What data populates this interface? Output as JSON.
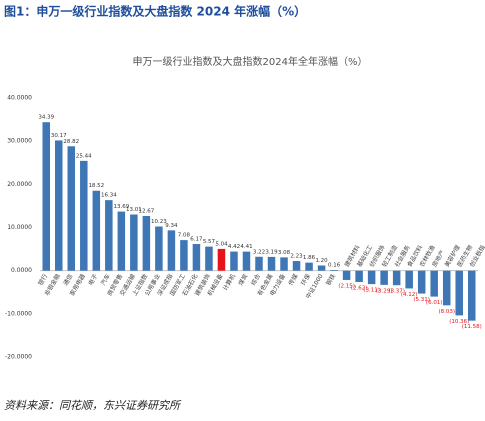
{
  "header": {
    "title": "图1：申万一级行业指数及大盘指数 2024 年涨幅（%）"
  },
  "chart_data": {
    "type": "bar",
    "title": "申万一级行业指数及大盘指数2024年全年涨幅（%）",
    "categories": [
      "银行",
      "非银金融",
      "通信",
      "家用电器",
      "电子",
      "汽车",
      "商贸零售",
      "交通运输",
      "上证指数",
      "公用事业",
      "深证成指",
      "国防军工",
      "石油石化",
      "建筑装饰",
      "机械设备",
      "计算机",
      "煤炭",
      "综合",
      "有色金属",
      "电力设备",
      "传媒",
      "环保",
      "中证1000",
      "钢铁",
      "建筑材料",
      "基础化工",
      "纺织服饰",
      "轻工制造",
      "社会服务",
      "食品饮料",
      "农林牧渔",
      "房地产",
      "美容护理",
      "医药生物",
      "创业板指"
    ],
    "values": [
      34.39,
      30.17,
      28.82,
      25.44,
      18.52,
      16.34,
      13.69,
      13.01,
      12.67,
      10.23,
      9.34,
      7.08,
      6.17,
      5.57,
      5.04,
      4.42,
      4.41,
      3.22,
      3.19,
      3.08,
      2.23,
      1.86,
      1.2,
      0.16,
      -2.15,
      -2.62,
      -3.11,
      -3.29,
      -3.37,
      -4.12,
      -5.31,
      -6.01,
      -8.03,
      -10.36,
      -11.58
    ],
    "value_labels": [
      "34.39",
      "30.17",
      "28.82",
      "25.44",
      "18.52",
      "16.34",
      "13.69",
      "13.01",
      "12.67",
      "10.23",
      "9.34",
      "7.08",
      "6.17",
      "5.57",
      "5.04",
      "4.42",
      "4.41",
      "3.22",
      "3.19",
      "3.08",
      "2.23",
      "1.86",
      "1.20",
      "0.16",
      "(2.15)",
      "(2.62)",
      "(3.11)",
      "(3.29)",
      "(3.37)",
      "(4.12)",
      "(5.31)",
      "(6.01)",
      "(8.03)",
      "(10.36)",
      "(11.58)"
    ],
    "color": "#3f77b6",
    "highlight": {
      "index": 14,
      "color": "#e8121b"
    },
    "negative_label_color": "#e8121b",
    "ylim": [
      -20,
      40
    ],
    "yticks": [
      {
        "value": -20,
        "label": "-20.0000"
      },
      {
        "value": -10,
        "label": "-10.0000"
      },
      {
        "value": 0,
        "label": "0.0000"
      },
      {
        "value": 10,
        "label": "10.0000"
      },
      {
        "value": 20,
        "label": "20.0000"
      },
      {
        "value": 30,
        "label": "30.0000"
      },
      {
        "value": 40,
        "label": "40.0000"
      }
    ]
  },
  "footer": {
    "source": "资料来源：同花顺，东兴证券研究所"
  }
}
